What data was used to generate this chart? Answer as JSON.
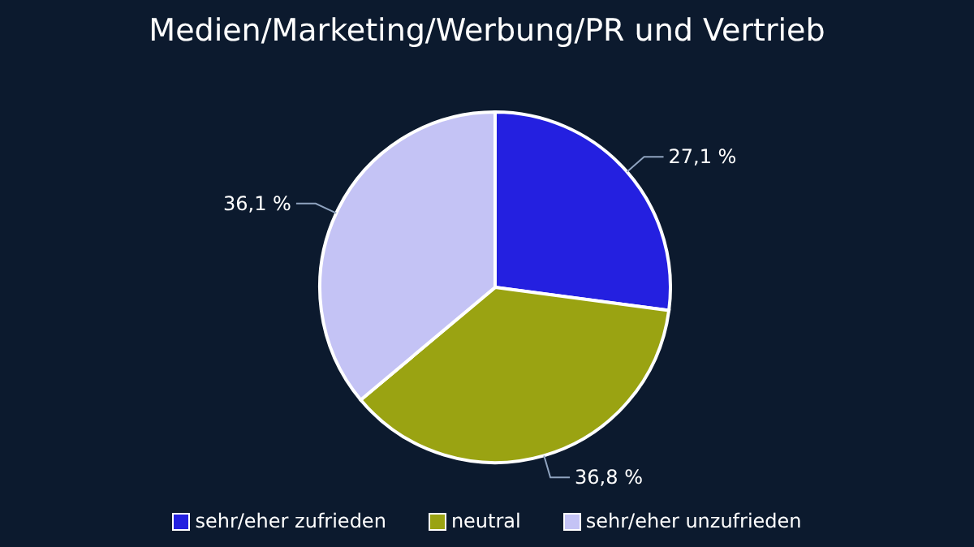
{
  "chart_data": {
    "type": "pie",
    "title": "Medien/Marketing/Werbung/PR und Vertrieb",
    "categories": [
      "sehr/eher zufrieden",
      "neutral",
      "sehr/eher unzufrieden"
    ],
    "values": [
      27.1,
      36.8,
      36.1
    ],
    "colors": [
      "#2420e0",
      "#9aa312",
      "#c4c3f5"
    ],
    "value_labels": [
      "27,1 %",
      "36,8 %",
      "36,1 %"
    ],
    "legend": "bottom"
  }
}
